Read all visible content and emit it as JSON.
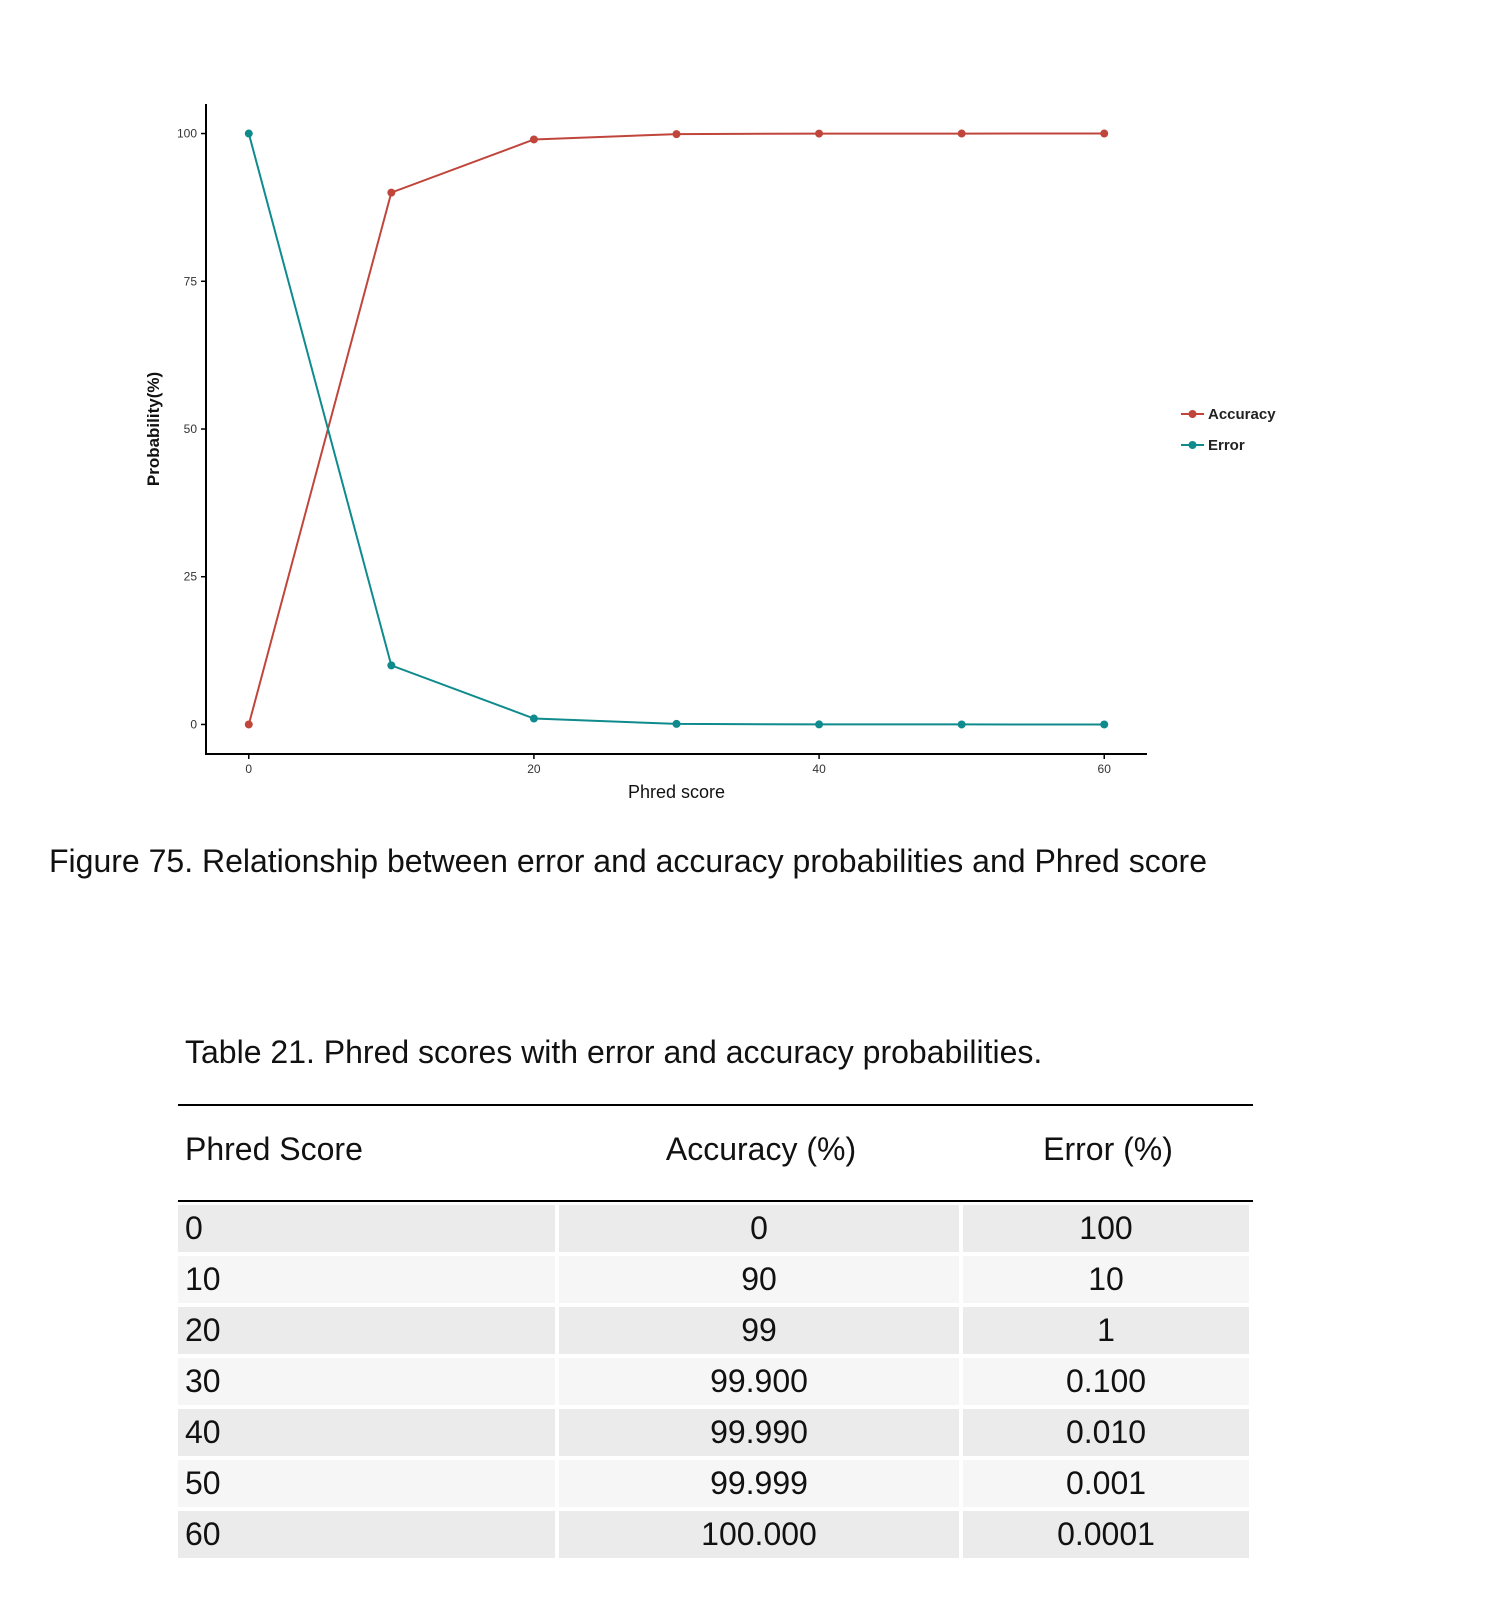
{
  "figure": {
    "caption": "Figure 75. Relationship between error and accuracy probabilities and Phred score"
  },
  "chart_data": {
    "type": "line",
    "xlabel": "Phred score",
    "ylabel": "Probability(%)",
    "x": [
      0,
      10,
      20,
      30,
      40,
      50,
      60
    ],
    "xticks": [
      "0",
      "20",
      "40",
      "60"
    ],
    "yticks": [
      "0",
      "25",
      "50",
      "75",
      "100"
    ],
    "xlim": [
      -3,
      63
    ],
    "ylim": [
      -5,
      105
    ],
    "grid": false,
    "legend_position": "right",
    "series": [
      {
        "name": "Accuracy",
        "color": "#c0463c",
        "values": [
          0,
          90,
          99,
          99.9,
          99.99,
          99.999,
          100
        ]
      },
      {
        "name": "Error",
        "color": "#0f8b8d",
        "values": [
          100,
          10,
          1,
          0.1,
          0.01,
          0.001,
          0.0001
        ]
      }
    ]
  },
  "table": {
    "caption": "Table 21. Phred scores with error and accuracy probabilities.",
    "headers": {
      "score": "Phred Score",
      "accuracy": "Accuracy (%)",
      "error": "Error (%)"
    },
    "rows": [
      [
        "0",
        "0",
        "100"
      ],
      [
        "10",
        "90",
        "10"
      ],
      [
        "20",
        "99",
        "1"
      ],
      [
        "30",
        "99.900",
        "0.100"
      ],
      [
        "40",
        "99.990",
        "0.010"
      ],
      [
        "50",
        "99.999",
        "0.001"
      ],
      [
        "60",
        "100.000",
        "0.0001"
      ]
    ]
  }
}
